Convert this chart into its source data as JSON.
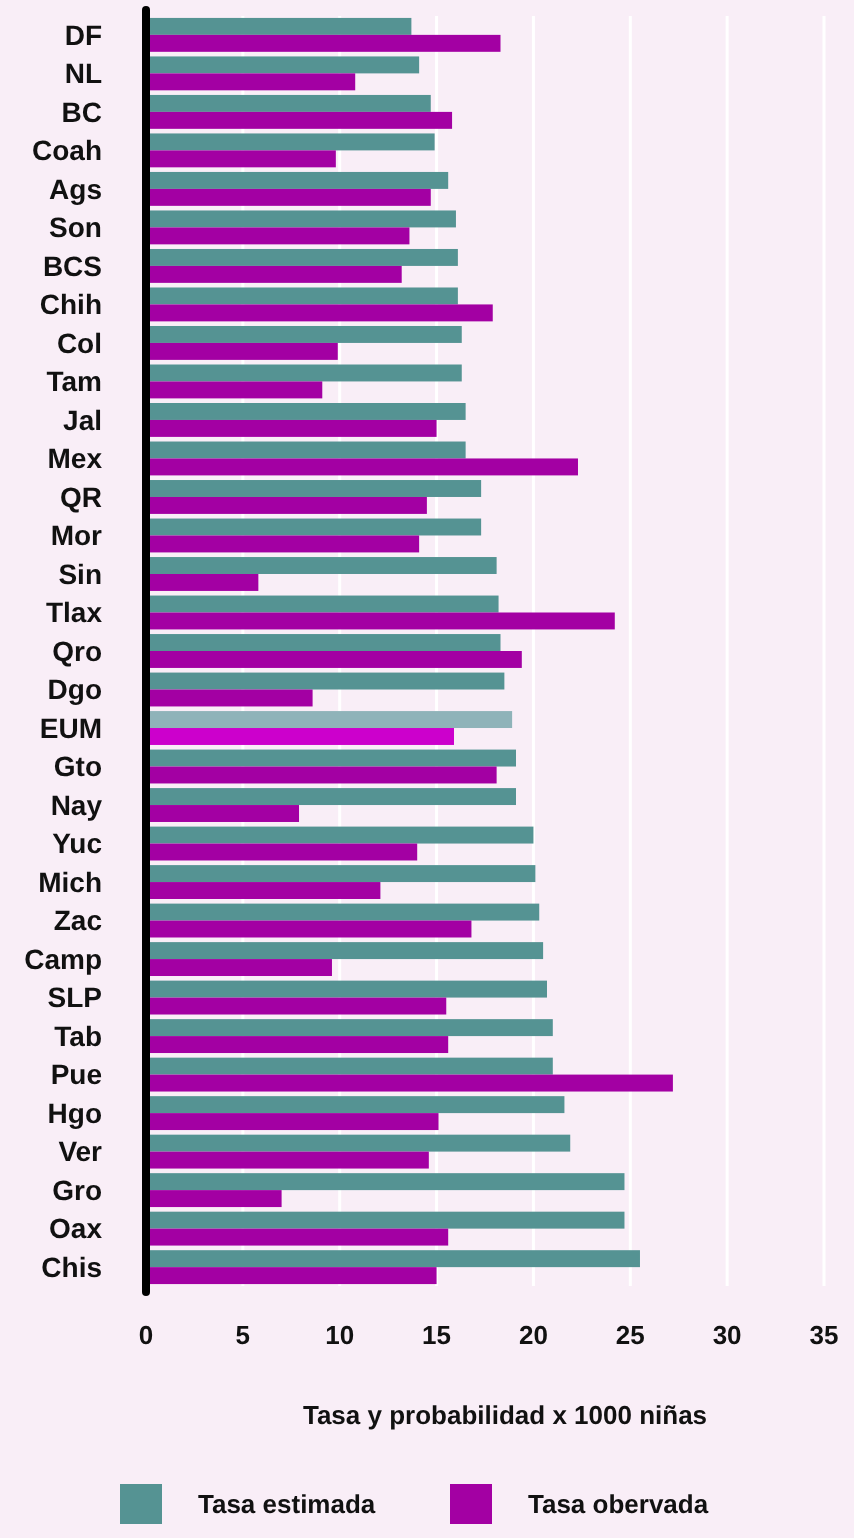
{
  "chart_data": {
    "type": "bar",
    "orientation": "horizontal",
    "xlabel": "Tasa y probabilidad x 1000 niñas",
    "categories": [
      "DF",
      "NL",
      "BC",
      "Coah",
      "Ags",
      "Son",
      "BCS",
      "Chih",
      "Col",
      "Tam",
      "Jal",
      "Mex",
      "QR",
      "Mor",
      "Sin",
      "Tlax",
      "Qro",
      "Dgo",
      "EUM",
      "Gto",
      "Nay",
      "Yuc",
      "Mich",
      "Zac",
      "Camp",
      "SLP",
      "Tab",
      "Pue",
      "Hgo",
      "Ver",
      "Gro",
      "Oax",
      "Chis"
    ],
    "series": [
      {
        "name": "Tasa estimada",
        "color": "#559393",
        "colors": [
          "#559393",
          "#559393",
          "#559393",
          "#559393",
          "#559393",
          "#559393",
          "#559393",
          "#559393",
          "#559393",
          "#559393",
          "#559393",
          "#559393",
          "#559393",
          "#559393",
          "#559393",
          "#559393",
          "#559393",
          "#559393",
          "#8fb3b9",
          "#559393",
          "#559393",
          "#559393",
          "#559393",
          "#559393",
          "#559393",
          "#559393",
          "#559393",
          "#559393",
          "#559393",
          "#559393",
          "#559393",
          "#559393",
          "#559393"
        ],
        "values": [
          13.7,
          14.1,
          14.7,
          14.9,
          15.6,
          16.0,
          16.1,
          16.1,
          16.3,
          16.3,
          16.5,
          16.5,
          17.3,
          17.3,
          18.1,
          18.2,
          18.3,
          18.5,
          18.9,
          19.1,
          19.1,
          20.0,
          20.1,
          20.3,
          20.5,
          20.7,
          21.0,
          21.0,
          21.6,
          21.9,
          24.7,
          24.7,
          25.5
        ]
      },
      {
        "name": "Tasa obervada",
        "color": "#a300a3",
        "colors": [
          "#a300a3",
          "#a300a3",
          "#a300a3",
          "#a300a3",
          "#a300a3",
          "#a300a3",
          "#a300a3",
          "#a300a3",
          "#a300a3",
          "#a300a3",
          "#a300a3",
          "#a300a3",
          "#a300a3",
          "#a300a3",
          "#a300a3",
          "#a300a3",
          "#a300a3",
          "#a300a3",
          "#cc00cc",
          "#a300a3",
          "#a300a3",
          "#a300a3",
          "#a300a3",
          "#a300a3",
          "#a300a3",
          "#a300a3",
          "#a300a3",
          "#a300a3",
          "#a300a3",
          "#a300a3",
          "#a300a3",
          "#a300a3",
          "#a300a3"
        ],
        "values": [
          18.3,
          10.8,
          15.8,
          9.8,
          14.7,
          13.6,
          13.2,
          17.9,
          9.9,
          9.1,
          15.0,
          22.3,
          14.5,
          14.1,
          5.8,
          24.2,
          19.4,
          8.6,
          15.9,
          18.1,
          7.9,
          14.0,
          12.1,
          16.8,
          9.6,
          15.5,
          15.6,
          27.2,
          15.1,
          14.6,
          7.0,
          15.6,
          15.0
        ]
      }
    ],
    "xlim": [
      0,
      35
    ],
    "xticks": [
      0,
      5,
      10,
      15,
      20,
      25,
      30,
      35
    ],
    "grid": "x",
    "legend": "bottom"
  }
}
